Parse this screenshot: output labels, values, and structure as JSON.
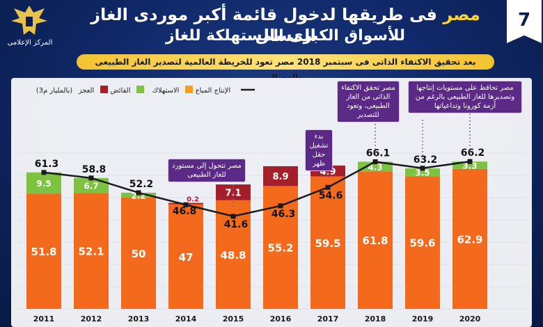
{
  "header": {
    "title_part1": "مصر",
    "title_part2": "فى طريقها لدخول قائمة أكبر موردى الغاز المسال",
    "title_line2": "للأسواق الكبرى المستهلكة للغاز",
    "subtitle": "بعد تحقيق الاكتفاء الذاتى فى سبتمبر 2018 مصر تعود للخريطة العالمية لتصدير الغاز الطبيعى والمسال",
    "badge_number": "7",
    "logo_text": "المركز الإعلامى"
  },
  "colors": {
    "production": "#f46a1c",
    "consumption": "#f7a11a",
    "surplus": "#7ec242",
    "deficit": "#a51f2a",
    "line": "#1a1a1a",
    "callout": "#5b2a86"
  },
  "callouts": [
    {
      "id": "2015",
      "text": "مصر تتحول إلى مستورد للغاز الطبيعى"
    },
    {
      "id": "2017",
      "text": "بدء تشغيل حقل ظهر"
    },
    {
      "id": "2018",
      "text": "مصر تحقق الاكتفاء الذاتى من الغاز الطبيعى، وتعود للتصدير"
    },
    {
      "id": "2020",
      "text": "مصر تحافظ على مستويات إنتاجها وتصديرها للغاز الطبيعى بالرغم من أزمة كورونا وتداعياتها"
    }
  ],
  "chart_data": {
    "type": "bar",
    "unit": "(بالمليار م3)",
    "legend": {
      "production": "الإنتاج المباع",
      "consumption": "الاستهلاك",
      "surplus": "الفائض",
      "deficit": "العجز"
    },
    "categories": [
      "2011",
      "2012",
      "2013",
      "2014",
      "2015",
      "2016",
      "2017",
      "2018",
      "2019",
      "2020"
    ],
    "consumption": [
      51.8,
      52.1,
      50,
      47,
      48.8,
      55.2,
      59.5,
      61.8,
      59.6,
      62.9
    ],
    "surplus": [
      9.5,
      6.7,
      2.2,
      null,
      null,
      null,
      null,
      4.3,
      3.5,
      3.3
    ],
    "deficit": [
      null,
      null,
      null,
      0.2,
      7.1,
      8.9,
      4.9,
      null,
      null,
      null
    ],
    "production": [
      61.3,
      58.8,
      52.2,
      46.8,
      41.6,
      46.3,
      54.6,
      66.1,
      63.2,
      66.2
    ],
    "ylim": [
      0,
      72
    ]
  }
}
